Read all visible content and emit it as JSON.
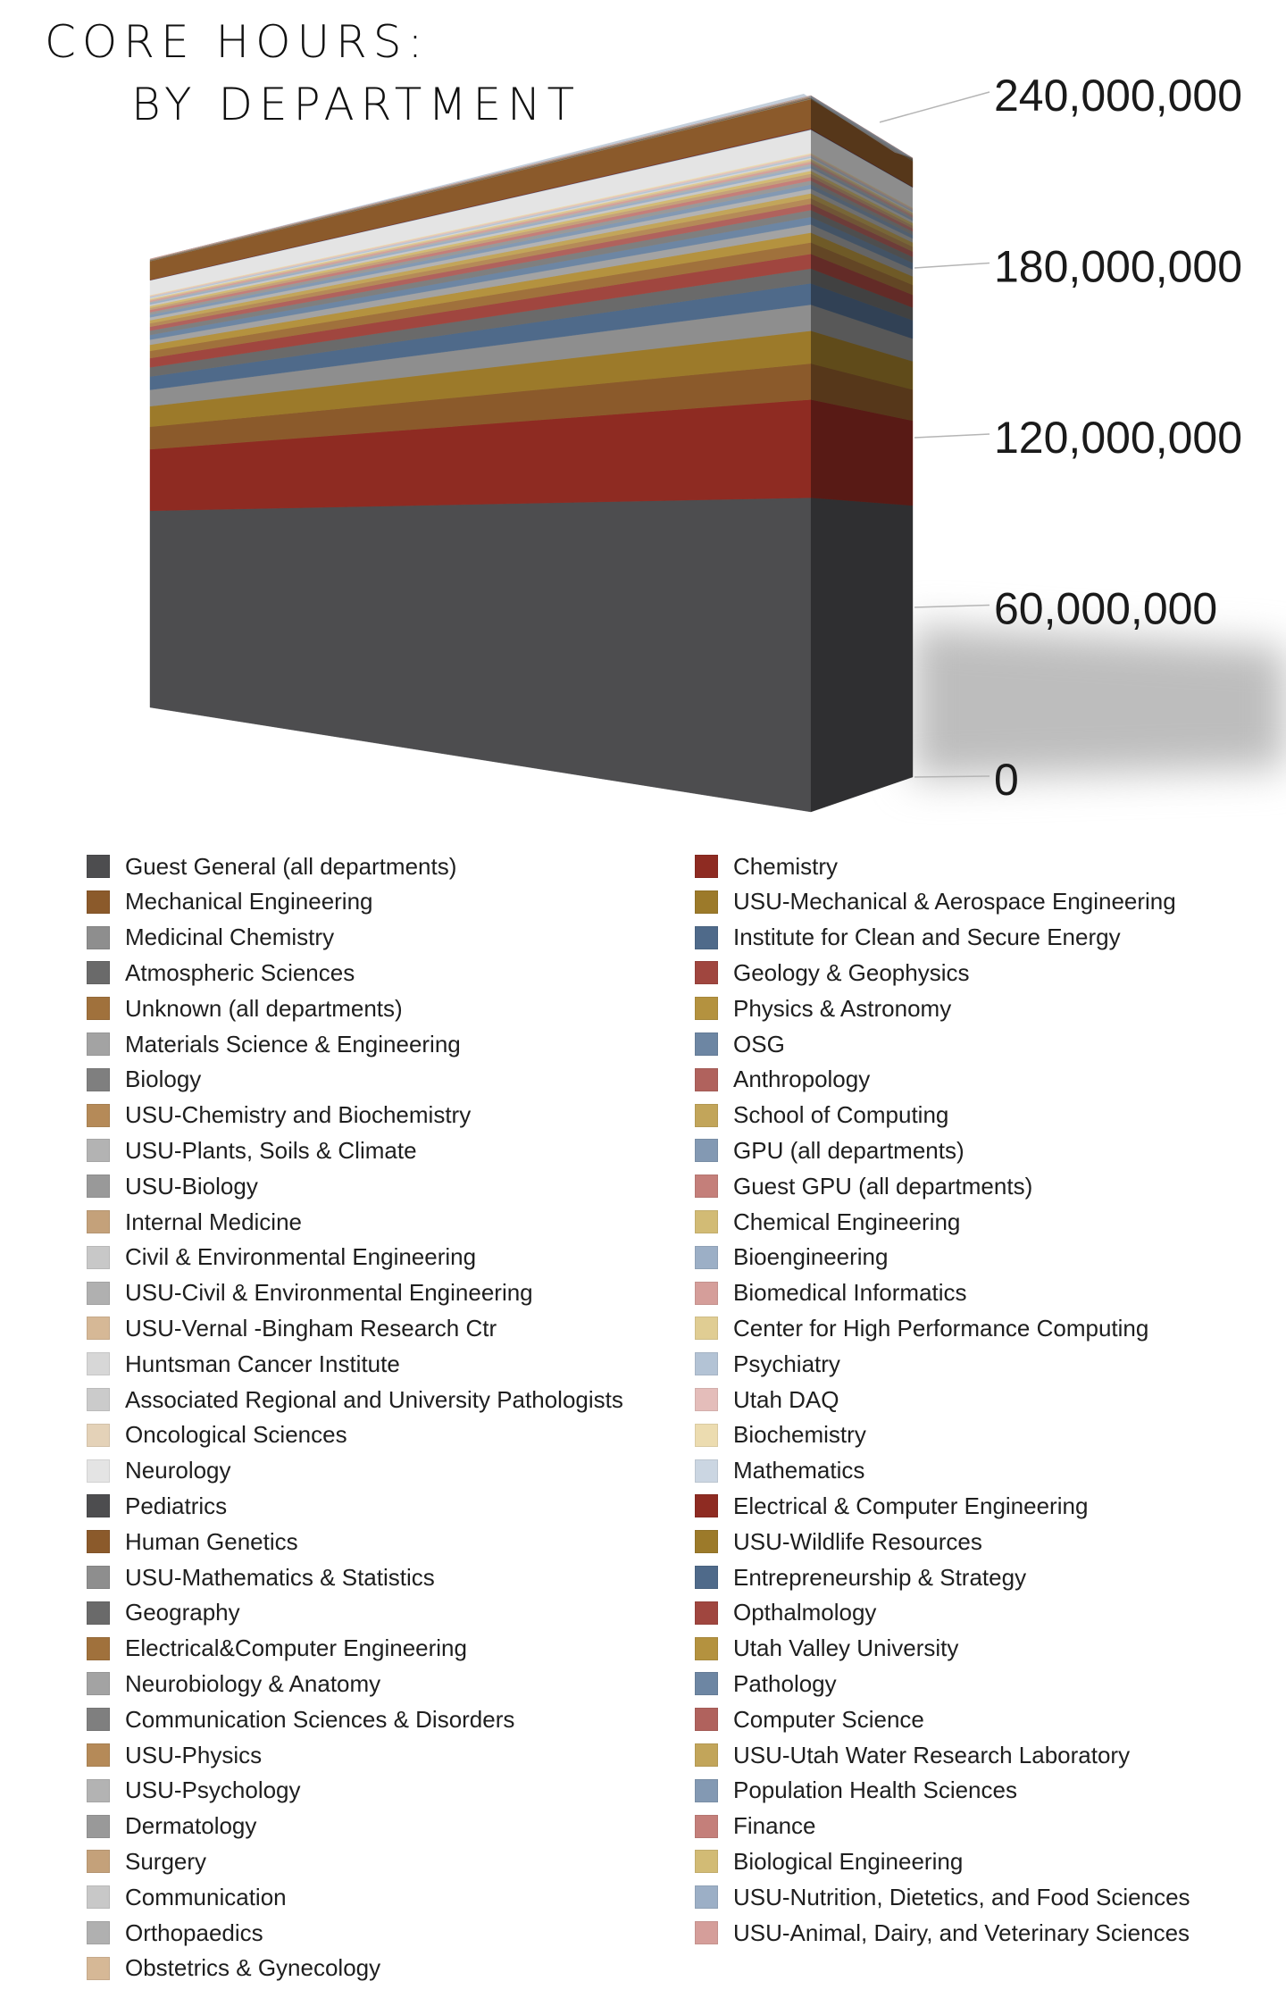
{
  "title": {
    "line1": "CORE HOURS:",
    "line2": "BY DEPARTMENT"
  },
  "legend": {
    "left": [
      {
        "label": "Guest General (all departments)",
        "color": "#4d4d4f"
      },
      {
        "label": "Mechanical Engineering",
        "color": "#8b5a2b"
      },
      {
        "label": "Medicinal Chemistry",
        "color": "#8e8e8e"
      },
      {
        "label": "Atmospheric Sciences",
        "color": "#6a6a6a"
      },
      {
        "label": "Unknown (all departments)",
        "color": "#a0713c"
      },
      {
        "label": "Materials Science & Engineering",
        "color": "#a3a3a3"
      },
      {
        "label": "Biology",
        "color": "#7f7f7f"
      },
      {
        "label": "USU-Chemistry and Biochemistry",
        "color": "#b58a58"
      },
      {
        "label": "USU-Plants, Soils & Climate",
        "color": "#b3b3b3"
      },
      {
        "label": "USU-Biology",
        "color": "#999999"
      },
      {
        "label": "Internal Medicine",
        "color": "#c4a17a"
      },
      {
        "label": "Civil & Environmental Engineering",
        "color": "#c8c8c8"
      },
      {
        "label": "USU-Civil & Environmental Engineering",
        "color": "#b0b0b0"
      },
      {
        "label": "USU-Vernal -Bingham Research Ctr",
        "color": "#d6b896"
      },
      {
        "label": "Huntsman Cancer Institute",
        "color": "#d7d7d7"
      },
      {
        "label": "Associated Regional and University Pathologists",
        "color": "#cbcbcb"
      },
      {
        "label": "Oncological Sciences",
        "color": "#e4d2b8"
      },
      {
        "label": "Neurology",
        "color": "#e4e4e4"
      },
      {
        "label": "Pediatrics",
        "color": "#4d4d4f"
      },
      {
        "label": "Human Genetics",
        "color": "#8b5a2b"
      },
      {
        "label": "USU-Mathematics & Statistics",
        "color": "#8e8e8e"
      },
      {
        "label": "Geography",
        "color": "#6a6a6a"
      },
      {
        "label": "Electrical&Computer Engineering",
        "color": "#a0713c"
      },
      {
        "label": "Neurobiology & Anatomy",
        "color": "#a3a3a3"
      },
      {
        "label": "Communication Sciences & Disorders",
        "color": "#7f7f7f"
      },
      {
        "label": "USU-Physics",
        "color": "#b58a58"
      },
      {
        "label": "USU-Psychology",
        "color": "#b3b3b3"
      },
      {
        "label": "Dermatology",
        "color": "#999999"
      },
      {
        "label": "Surgery",
        "color": "#c4a17a"
      },
      {
        "label": "Communication",
        "color": "#c8c8c8"
      },
      {
        "label": "Orthopaedics",
        "color": "#b0b0b0"
      },
      {
        "label": "Obstetrics & Gynecology",
        "color": "#d6b896"
      }
    ],
    "right": [
      {
        "label": "Chemistry",
        "color": "#8e2b22"
      },
      {
        "label": "USU-Mechanical & Aerospace Engineering",
        "color": "#9c7a2a"
      },
      {
        "label": "Institute for Clean and Secure Energy",
        "color": "#4f6a8a"
      },
      {
        "label": "Geology & Geophysics",
        "color": "#a0463f"
      },
      {
        "label": "Physics & Astronomy",
        "color": "#b4923f"
      },
      {
        "label": "OSG",
        "color": "#6d86a3"
      },
      {
        "label": "Anthropology",
        "color": "#b0625d"
      },
      {
        "label": "School of Computing",
        "color": "#c2a55a"
      },
      {
        "label": "GPU (all departments)",
        "color": "#8399b3"
      },
      {
        "label": "Guest GPU (all departments)",
        "color": "#c47f7a"
      },
      {
        "label": "Chemical Engineering",
        "color": "#d2bb75"
      },
      {
        "label": "Bioengineering",
        "color": "#9cafc6"
      },
      {
        "label": "Biomedical Informatics",
        "color": "#d59e9a"
      },
      {
        "label": "Center for High Performance Computing",
        "color": "#e0cd93"
      },
      {
        "label": "Psychiatry",
        "color": "#b3c3d5"
      },
      {
        "label": "Utah DAQ",
        "color": "#e4bdba"
      },
      {
        "label": "Biochemistry",
        "color": "#ecdcb0"
      },
      {
        "label": "Mathematics",
        "color": "#cbd6e2"
      },
      {
        "label": "Electrical & Computer Engineering",
        "color": "#8e2b22"
      },
      {
        "label": "USU-Wildlife Resources",
        "color": "#9c7a2a"
      },
      {
        "label": "Entrepreneurship & Strategy",
        "color": "#4f6a8a"
      },
      {
        "label": "Opthalmology",
        "color": "#a0463f"
      },
      {
        "label": "Utah Valley University",
        "color": "#b4923f"
      },
      {
        "label": "Pathology",
        "color": "#6d86a3"
      },
      {
        "label": "Computer Science",
        "color": "#b0625d"
      },
      {
        "label": "USU-Utah Water Research Laboratory",
        "color": "#c2a55a"
      },
      {
        "label": "Population Health Sciences",
        "color": "#8399b3"
      },
      {
        "label": "Finance",
        "color": "#c47f7a"
      },
      {
        "label": "Biological Engineering",
        "color": "#d2bb75"
      },
      {
        "label": "USU-Nutrition, Dietetics, and Food Sciences",
        "color": "#9cafc6"
      },
      {
        "label": "USU-Animal, Dairy, and Veterinary Sciences",
        "color": "#d59e9a"
      }
    ]
  },
  "chart_data": {
    "type": "bar",
    "stacked": true,
    "style": "3d-block",
    "title": "CORE HOURS: BY DEPARTMENT",
    "ylim": [
      0,
      240000000
    ],
    "yticks": [
      0,
      60000000,
      120000000,
      180000000,
      240000000
    ],
    "ytick_labels": [
      "0",
      "60,000,000",
      "120,000,000",
      "180,000,000",
      "240,000,000"
    ],
    "grid": false,
    "legend_placement": "bottom",
    "series": [
      {
        "name": "Guest General (all departments)",
        "value": 96000000
      },
      {
        "name": "Chemistry",
        "value": 30000000
      },
      {
        "name": "Mechanical Engineering",
        "value": 11000000
      },
      {
        "name": "USU-Mechanical & Aerospace Engineering",
        "value": 10000000
      },
      {
        "name": "Medicinal Chemistry",
        "value": 8000000
      },
      {
        "name": "Institute for Clean and Secure Energy",
        "value": 6500000
      },
      {
        "name": "Atmospheric Sciences",
        "value": 4500000
      },
      {
        "name": "Geology & Geophysics",
        "value": 4500000
      },
      {
        "name": "Unknown (all departments)",
        "value": 3500000
      },
      {
        "name": "Physics & Astronomy",
        "value": 3000000
      },
      {
        "name": "Materials Science & Engineering",
        "value": 2500000
      },
      {
        "name": "OSG",
        "value": 2300000
      },
      {
        "name": "Biology",
        "value": 2100000
      },
      {
        "name": "Anthropology",
        "value": 1900000
      },
      {
        "name": "USU-Chemistry and Biochemistry",
        "value": 1700000
      },
      {
        "name": "School of Computing",
        "value": 1500000
      },
      {
        "name": "USU-Plants, Soils & Climate",
        "value": 1400000
      },
      {
        "name": "GPU (all departments)",
        "value": 1300000
      },
      {
        "name": "USU-Biology",
        "value": 1200000
      },
      {
        "name": "Guest GPU (all departments)",
        "value": 1100000
      },
      {
        "name": "Internal Medicine",
        "value": 1000000
      },
      {
        "name": "Chemical Engineering",
        "value": 900000
      },
      {
        "name": "Civil & Environmental Engineering",
        "value": 800000
      },
      {
        "name": "Bioengineering",
        "value": 700000
      },
      {
        "name": "USU-Civil & Environmental Engineering",
        "value": 600000
      },
      {
        "name": "Biomedical Informatics",
        "value": 550000
      },
      {
        "name": "USU-Vernal -Bingham Research Ctr",
        "value": 500000
      },
      {
        "name": "Center for High Performance Computing",
        "value": 450000
      },
      {
        "name": "Huntsman Cancer Institute",
        "value": 400000
      },
      {
        "name": "Psychiatry",
        "value": 350000
      },
      {
        "name": "Associated Regional and University Pathologists",
        "value": 300000
      },
      {
        "name": "Utah DAQ",
        "value": 280000
      },
      {
        "name": "Oncological Sciences",
        "value": 250000
      },
      {
        "name": "Biochemistry",
        "value": 220000
      },
      {
        "name": "Neurology",
        "value": 7000000
      },
      {
        "name": "Mathematics",
        "value": 200000
      },
      {
        "name": "Pediatrics",
        "value": 150000
      },
      {
        "name": "Electrical & Computer Engineering",
        "value": 150000
      },
      {
        "name": "Human Genetics",
        "value": 9000000
      },
      {
        "name": "USU-Mathematics & Statistics",
        "value": 100000
      },
      {
        "name": "USU-Wildlife Resources",
        "value": 90000
      },
      {
        "name": "Geography",
        "value": 80000
      },
      {
        "name": "Entrepreneurship & Strategy",
        "value": 80000
      },
      {
        "name": "Electrical&Computer Engineering",
        "value": 70000
      },
      {
        "name": "Opthalmology",
        "value": 70000
      },
      {
        "name": "Neurobiology & Anatomy",
        "value": 60000
      },
      {
        "name": "Utah Valley University",
        "value": 60000
      },
      {
        "name": "Communication Sciences & Disorders",
        "value": 50000
      },
      {
        "name": "Pathology",
        "value": 50000
      },
      {
        "name": "USU-Physics",
        "value": 40000
      },
      {
        "name": "Computer Science",
        "value": 40000
      },
      {
        "name": "USU-Psychology",
        "value": 40000
      },
      {
        "name": "USU-Utah Water Research Laboratory",
        "value": 30000
      },
      {
        "name": "Dermatology",
        "value": 30000
      },
      {
        "name": "Population Health Sciences",
        "value": 30000
      },
      {
        "name": "Surgery",
        "value": 30000
      },
      {
        "name": "Finance",
        "value": 20000
      },
      {
        "name": "Communication",
        "value": 20000
      },
      {
        "name": "Biological Engineering",
        "value": 20000
      },
      {
        "name": "Orthopaedics",
        "value": 20000
      },
      {
        "name": "USU-Nutrition, Dietetics, and Food Sciences",
        "value": 20000
      },
      {
        "name": "Obstetrics & Gynecology",
        "value": 20000
      },
      {
        "name": "USU-Animal, Dairy, and Veterinary Sciences",
        "value": 10000
      }
    ]
  }
}
